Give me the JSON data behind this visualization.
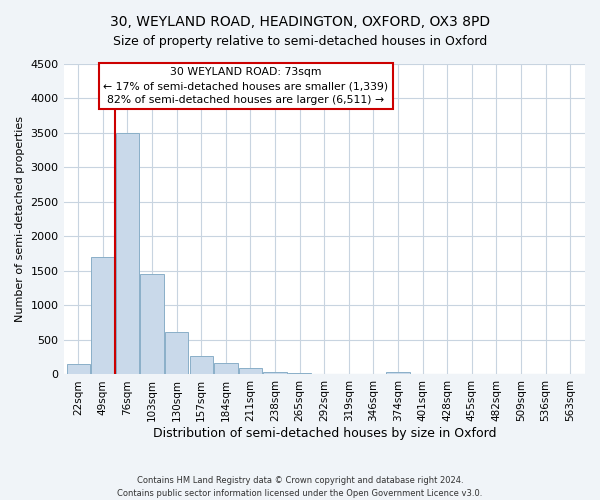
{
  "title1": "30, WEYLAND ROAD, HEADINGTON, OXFORD, OX3 8PD",
  "title2": "Size of property relative to semi-detached houses in Oxford",
  "xlabel": "Distribution of semi-detached houses by size in Oxford",
  "ylabel": "Number of semi-detached properties",
  "bin_labels": [
    "22sqm",
    "49sqm",
    "76sqm",
    "103sqm",
    "130sqm",
    "157sqm",
    "184sqm",
    "211sqm",
    "238sqm",
    "265sqm",
    "292sqm",
    "319sqm",
    "346sqm",
    "374sqm",
    "401sqm",
    "428sqm",
    "455sqm",
    "482sqm",
    "509sqm",
    "536sqm",
    "563sqm"
  ],
  "bar_heights": [
    150,
    1700,
    3500,
    1450,
    620,
    270,
    165,
    90,
    40,
    15,
    5,
    5,
    5,
    40,
    0,
    0,
    0,
    0,
    0,
    0,
    0
  ],
  "bar_color": "#c9d9ea",
  "bar_edgecolor": "#8aafc8",
  "ylim": [
    0,
    4500
  ],
  "yticks": [
    0,
    500,
    1000,
    1500,
    2000,
    2500,
    3000,
    3500,
    4000,
    4500
  ],
  "property_line_color": "#cc0000",
  "annotation_box_color": "#cc0000",
  "annotation_lines": [
    "30 WEYLAND ROAD: 73sqm",
    "← 17% of semi-detached houses are smaller (1,339)",
    "82% of semi-detached houses are larger (6,511) →"
  ],
  "footer1": "Contains HM Land Registry data © Crown copyright and database right 2024.",
  "footer2": "Contains public sector information licensed under the Open Government Licence v3.0.",
  "bg_color": "#f0f4f8",
  "plot_bg_color": "#ffffff",
  "grid_color": "#c8d4e0"
}
